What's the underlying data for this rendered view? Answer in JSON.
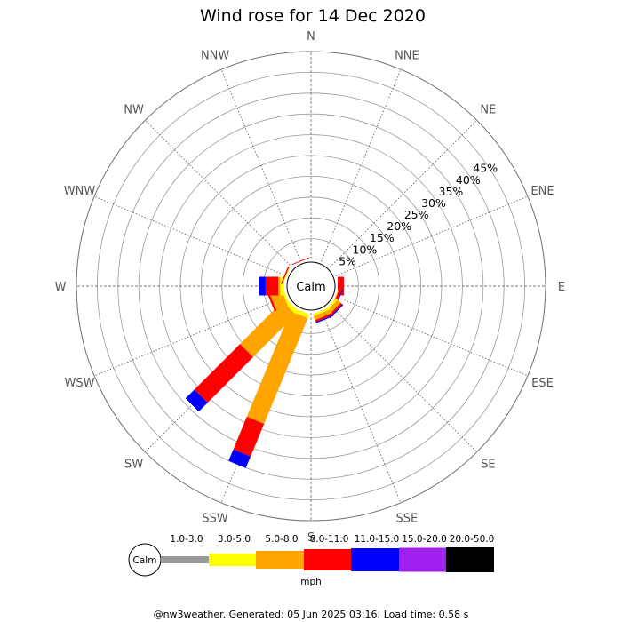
{
  "chart_data": {
    "type": "wind-rose",
    "title": "Wind rose for 14 Dec 2020",
    "directions": [
      "N",
      "NNE",
      "NE",
      "ENE",
      "E",
      "ESE",
      "SE",
      "SSE",
      "S",
      "SSW",
      "SW",
      "WSW",
      "W",
      "WNW",
      "NW",
      "NNW"
    ],
    "radial_ticks": [
      "5%",
      "10%",
      "15%",
      "20%",
      "25%",
      "30%",
      "35%",
      "40%",
      "45%"
    ],
    "radial_max": 50,
    "grid": true,
    "center_label": "Calm",
    "unit_label": "mph",
    "speed_bins": [
      {
        "label": "1.0-3.0",
        "color": "#999999"
      },
      {
        "label": "3.0-5.0",
        "color": "#ffff00"
      },
      {
        "label": "5.0-8.0",
        "color": "#ffa500"
      },
      {
        "label": "8.0-11.0",
        "color": "#ff0000"
      },
      {
        "label": "11.0-15.0",
        "color": "#0000ff"
      },
      {
        "label": "15.0-20.0",
        "color": "#a020f0"
      },
      {
        "label": "20.0-50.0",
        "color": "#000000"
      }
    ],
    "series": [
      {
        "direction": "E",
        "values": [
          0,
          0,
          0,
          1.5,
          0,
          0,
          0
        ]
      },
      {
        "direction": "ESE",
        "values": [
          0,
          0,
          0.2,
          0.6,
          0.2,
          0,
          0
        ]
      },
      {
        "direction": "SE",
        "values": [
          0,
          0.5,
          1.0,
          0.5,
          0.3,
          0,
          0
        ]
      },
      {
        "direction": "SSE",
        "values": [
          0,
          0.5,
          1.0,
          0.5,
          0.3,
          0,
          0
        ]
      },
      {
        "direction": "S",
        "values": [
          0,
          0,
          0,
          0,
          0,
          0,
          0
        ]
      },
      {
        "direction": "SSW",
        "values": [
          0,
          1.0,
          27.5,
          8.5,
          3.0,
          0,
          0
        ]
      },
      {
        "direction": "SW",
        "values": [
          0,
          1.0,
          14.5,
          15.5,
          3.0,
          0,
          0
        ]
      },
      {
        "direction": "WSW",
        "values": [
          0,
          0.5,
          3.0,
          0.5,
          0,
          0,
          0
        ]
      },
      {
        "direction": "W",
        "values": [
          0,
          1.0,
          0.5,
          3.0,
          1.5,
          0,
          0
        ]
      },
      {
        "direction": "WNW",
        "values": [
          0,
          0.2,
          0,
          0.3,
          0,
          0,
          0
        ]
      },
      {
        "direction": "NNW",
        "values": [
          0,
          0,
          0,
          0.2,
          0,
          0,
          0
        ]
      }
    ]
  },
  "footer": "@nw3weather. Generated: 05 Jun 2025 03:16; Load time: 0.58 s"
}
